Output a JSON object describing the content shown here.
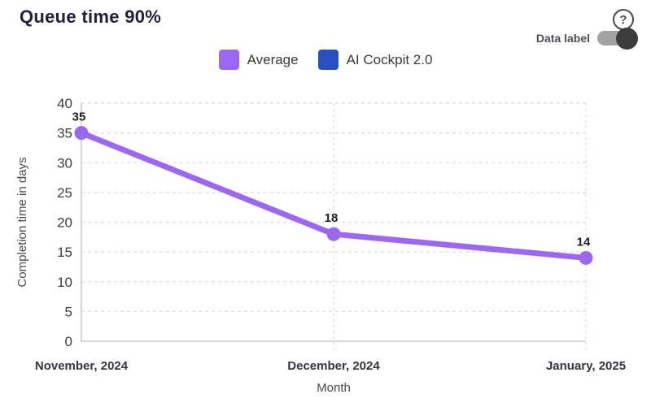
{
  "header": {
    "title": "Queue time 90%",
    "help_icon_glyph": "?",
    "toggle": {
      "label": "Data label",
      "state": "on"
    }
  },
  "legend": [
    {
      "label": "Average",
      "color": "#9c68f2"
    },
    {
      "label": "AI Cockpit 2.0",
      "color": "#2850c4"
    }
  ],
  "chart_data": {
    "type": "line",
    "title": "Queue time 90%",
    "categories": [
      "November, 2024",
      "December, 2024",
      "January, 2025"
    ],
    "series": [
      {
        "name": "Average",
        "color": "#9c68f2",
        "values": [
          35,
          18,
          14
        ]
      },
      {
        "name": "AI Cockpit 2.0",
        "color": "#2850c4",
        "values": []
      }
    ],
    "data_labels": [
      "35",
      "18",
      "14"
    ],
    "xlabel": "Month",
    "ylabel": "Completion time in days",
    "ylim": [
      0,
      40
    ],
    "ytick_step": 5,
    "grid": true,
    "legend_position": "top",
    "colors": {
      "gridline": "#e2e2e2",
      "axis": "#c9c9c9",
      "tick_text": "#3d3d3d",
      "x_label_text": "#35353f",
      "data_label_text": "#1f1f1f"
    }
  }
}
